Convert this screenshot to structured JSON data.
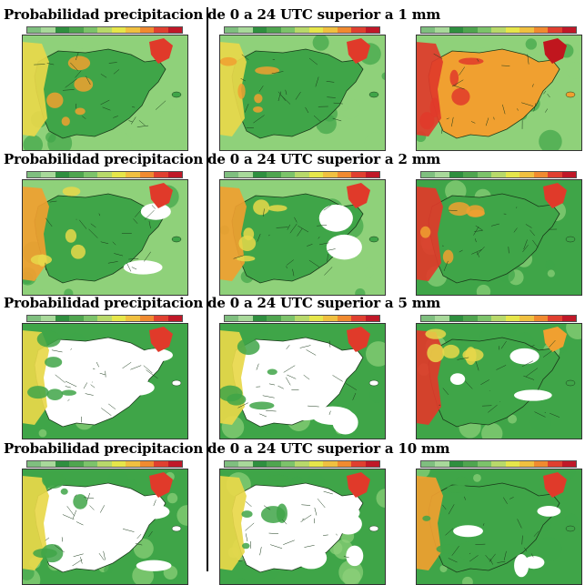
{
  "rows": [
    {
      "title": "Probabilidad precipitacion de 0 a 24 UTC superior a 1 mm"
    },
    {
      "title": "Probabilidad precipitacion de 0 a 24 UTC superior a 2 mm"
    },
    {
      "title": "Probabilidad precipitacion de 0 a 24 UTC superior a 5 mm"
    },
    {
      "title": "Probabilidad precipitacion de 0 a 24 UTC superior a 10 mm"
    }
  ],
  "colorbar": [
    "#7fbf7f",
    "#a8d99a",
    "#2f8f3f",
    "#4fa54f",
    "#7cc36a",
    "#b8d96a",
    "#e6e64a",
    "#f0c040",
    "#f08a30",
    "#e04030",
    "#c01828"
  ],
  "palette": {
    "white": "#ffffff",
    "light_green": "#8fd17a",
    "green": "#3fa548",
    "dark_green": "#2c8a3a",
    "yellow": "#e8d84a",
    "orange": "#f0a030",
    "red": "#e03a2a",
    "deep_red": "#c0161e",
    "border": "#1a3a1a"
  },
  "maps": [
    [
      {
        "level": "high"
      },
      {
        "level": "high"
      },
      {
        "level": "extreme"
      }
    ],
    [
      {
        "level": "mid"
      },
      {
        "level": "mid"
      },
      {
        "level": "very_high"
      }
    ],
    [
      {
        "level": "low"
      },
      {
        "level": "low"
      },
      {
        "level": "mid_plus"
      }
    ],
    [
      {
        "level": "very_low"
      },
      {
        "level": "very_low"
      },
      {
        "level": "low_plus"
      }
    ]
  ]
}
